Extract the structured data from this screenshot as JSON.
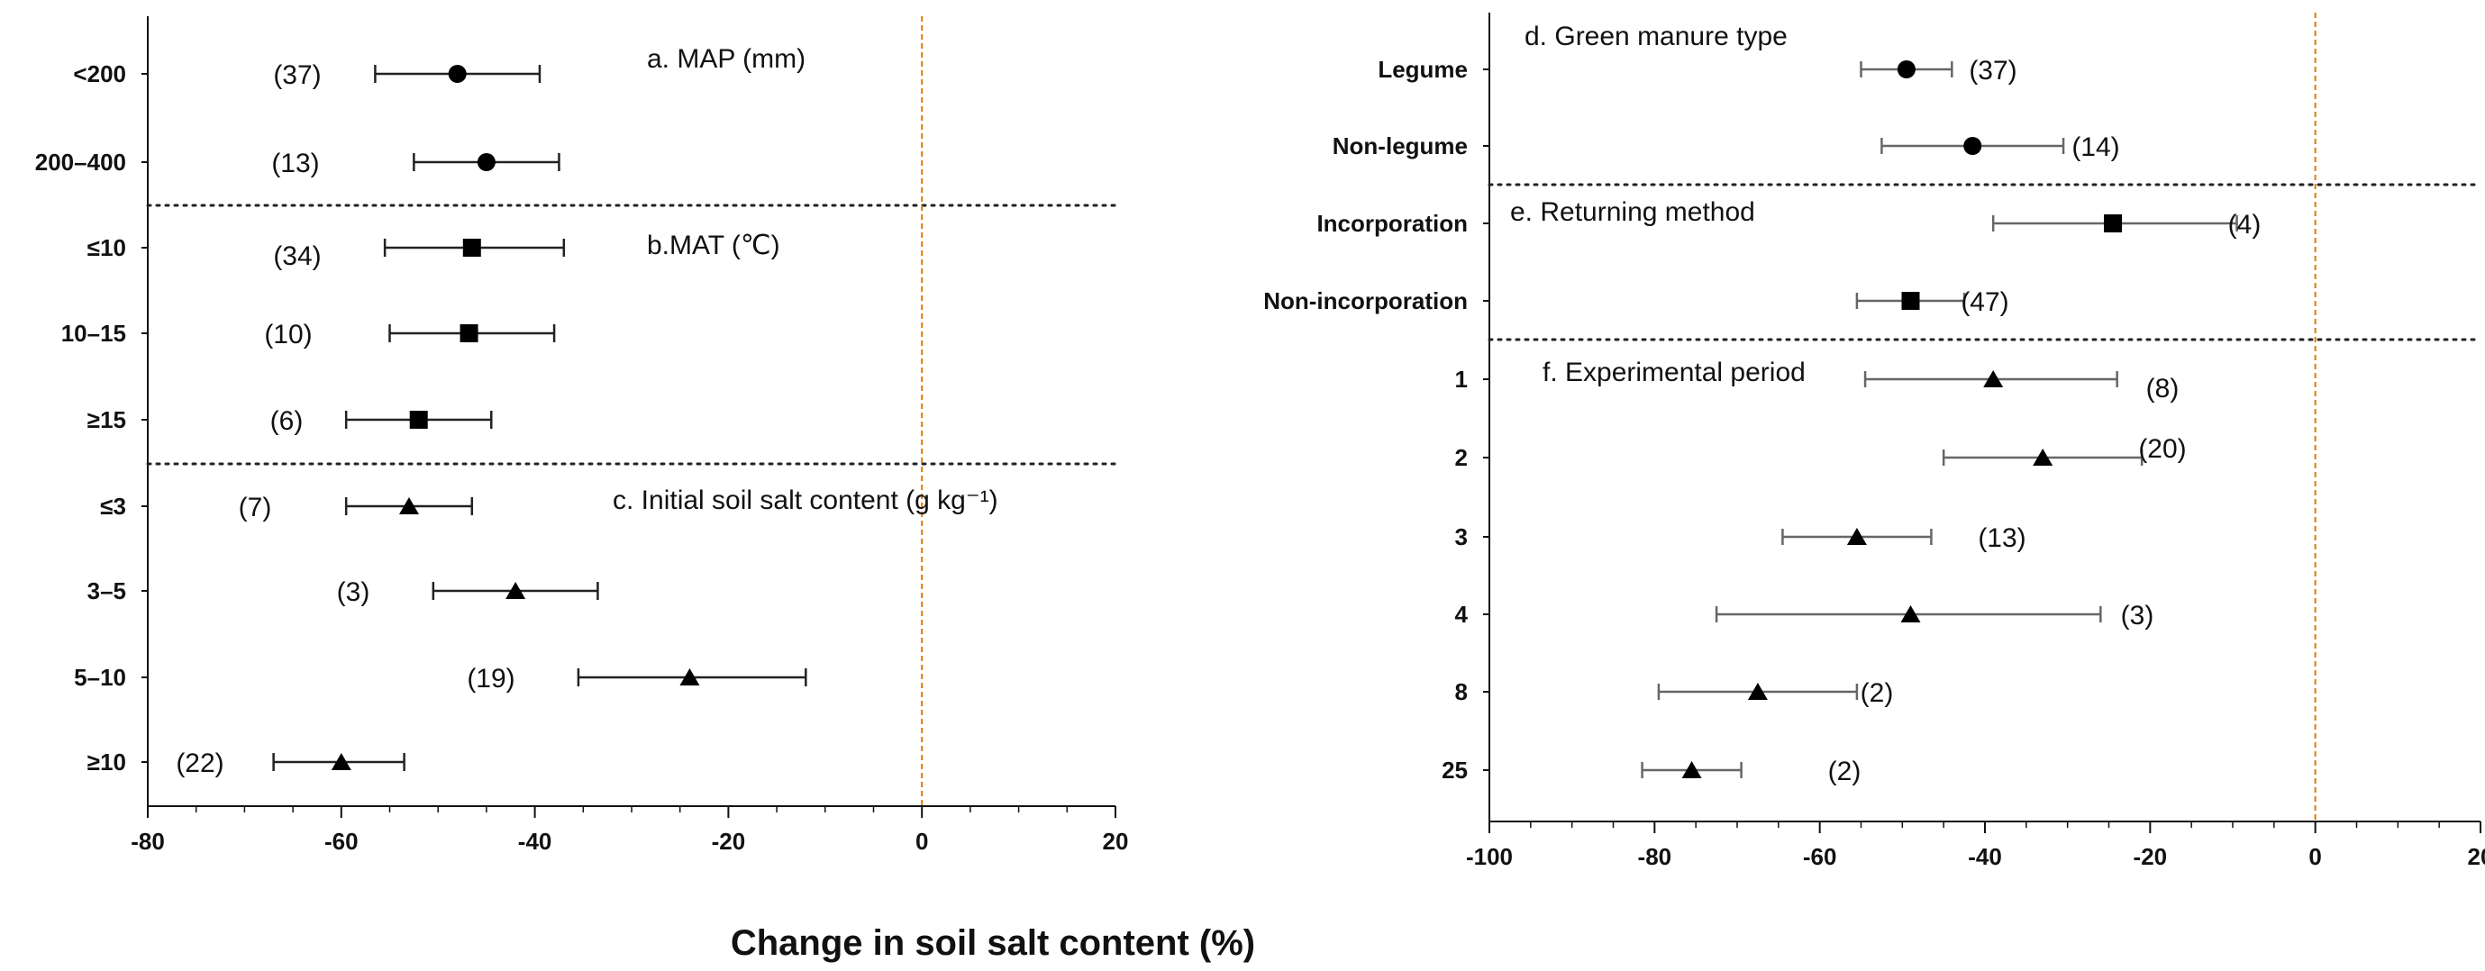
{
  "chart_data": [
    {
      "type": "forest",
      "xlim": [
        -80,
        20
      ],
      "xticks": [
        -80,
        -60,
        -40,
        -20,
        0,
        20
      ],
      "reference_line": 0,
      "groups": [
        {
          "label": "a. MAP (mm)",
          "marker": "circle",
          "rows": [
            {
              "category": "<200",
              "mean": -48,
              "lower": -56.5,
              "upper": -39.5,
              "n": "(37)"
            },
            {
              "category": "200–400",
              "mean": -45,
              "lower": -52.5,
              "upper": -37.5,
              "n": "(13)"
            }
          ]
        },
        {
          "label": "b.MAT (℃)",
          "marker": "square",
          "rows": [
            {
              "category": "≤10",
              "mean": -46.5,
              "lower": -55.5,
              "upper": -37,
              "n": "(34)"
            },
            {
              "category": "10–15",
              "mean": -46.8,
              "lower": -55,
              "upper": -38,
              "n": "(10)"
            },
            {
              "category": "≥15",
              "mean": -52,
              "lower": -59.5,
              "upper": -44.5,
              "n": "(6)"
            }
          ]
        },
        {
          "label": "c. Initial soil salt content (g kg⁻¹)",
          "marker": "triangle",
          "rows": [
            {
              "category": "≤3",
              "mean": -53,
              "lower": -59.5,
              "upper": -46.5,
              "n": "(7)"
            },
            {
              "category": "3–5",
              "mean": -42,
              "lower": -50.5,
              "upper": -33.5,
              "n": "(3)"
            },
            {
              "category": "5–10",
              "mean": -24,
              "lower": -35.5,
              "upper": -12,
              "n": "(19)"
            },
            {
              "category": "≥10",
              "mean": -60,
              "lower": -67,
              "upper": -53.5,
              "n": "(22)"
            }
          ]
        }
      ]
    },
    {
      "type": "forest",
      "xlim": [
        -100,
        20
      ],
      "xticks": [
        -100,
        -80,
        -60,
        -40,
        -20,
        0,
        20
      ],
      "reference_line": 0,
      "groups": [
        {
          "label": "d. Green manure type",
          "marker": "circle",
          "rows": [
            {
              "category": "Legume",
              "mean": -49.5,
              "lower": -55,
              "upper": -44,
              "n": "(37)"
            },
            {
              "category": "Non-legume",
              "mean": -41.5,
              "lower": -52.5,
              "upper": -30.5,
              "n": "(14)"
            }
          ]
        },
        {
          "label": "e. Returning method",
          "marker": "square",
          "rows": [
            {
              "category": "Incorporation",
              "mean": -24.5,
              "lower": -39,
              "upper": -9.5,
              "n": "(4)"
            },
            {
              "category": "Non-incorporation",
              "mean": -49,
              "lower": -55.5,
              "upper": -42.5,
              "n": "(47)"
            }
          ]
        },
        {
          "label": "f. Experimental period",
          "marker": "triangle",
          "rows": [
            {
              "category": "1",
              "mean": -39,
              "lower": -54.5,
              "upper": -24,
              "n": "(8)"
            },
            {
              "category": "2",
              "mean": -33,
              "lower": -45,
              "upper": -21,
              "n": "(20)"
            },
            {
              "category": "3",
              "mean": -55.5,
              "lower": -64.5,
              "upper": -46.5,
              "n": "(13)"
            },
            {
              "category": "4",
              "mean": -49,
              "lower": -72.5,
              "upper": -26,
              "n": "(3)"
            },
            {
              "category": "8",
              "mean": -67.5,
              "lower": -79.5,
              "upper": -55.5,
              "n": "(2)"
            },
            {
              "category": "25",
              "mean": -75.5,
              "lower": -81.5,
              "upper": -69.5,
              "n": "(2)"
            }
          ]
        }
      ]
    }
  ],
  "shared_xlabel": "Change in soil salt content  (%)",
  "colors": {
    "axis": "#111111",
    "errorbar_left": "#222222",
    "errorbar_right": "#666666",
    "reference_line": "#e07b00",
    "separator": "#222222"
  }
}
